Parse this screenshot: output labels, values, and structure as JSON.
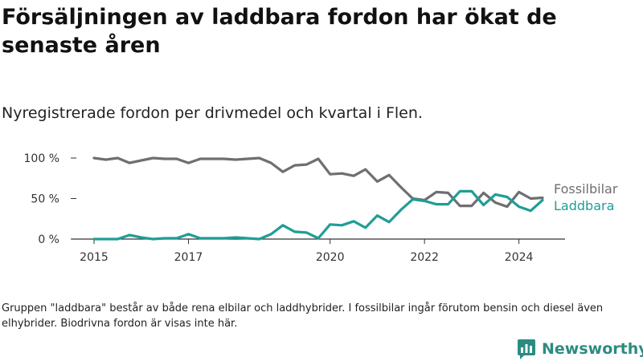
{
  "title": "Försäljningen av laddbara fordon har ökat de senaste åren",
  "subtitle": "Nyregistrerade fordon per drivmedel och kvartal i Flen.",
  "footnote": "Gruppen \"laddbara\" består av både rena elbilar och laddhybrider. I fossilbilar ingår förutom bensin och diesel även elhybrider. Biodrivna fordon är visas inte här.",
  "brand": {
    "name": "Newsworthy",
    "icon": "newsworthy-logo-icon"
  },
  "colors": {
    "fossil": "#6e6e73",
    "laddbara": "#1f9e96",
    "axis": "#333333",
    "grid": "#cccccc"
  },
  "chart_data": {
    "type": "line",
    "title": "",
    "xlabel": "",
    "ylabel": "",
    "ylim": [
      0,
      100
    ],
    "y_ticks": [
      {
        "value": 0,
        "label": "0 %"
      },
      {
        "value": 50,
        "label": "50 %"
      },
      {
        "value": 100,
        "label": "100 %"
      }
    ],
    "x_ticks": [
      "2015",
      "2017",
      "2020",
      "2022",
      "2024"
    ],
    "x_tick_positions": [
      2015.0,
      2017.0,
      2020.0,
      2022.0,
      2024.0
    ],
    "x_range": [
      2015.0,
      2024.5
    ],
    "x": [
      2015.0,
      2015.25,
      2015.5,
      2015.75,
      2016.0,
      2016.25,
      2016.5,
      2016.75,
      2017.0,
      2017.25,
      2017.5,
      2017.75,
      2018.0,
      2018.25,
      2018.5,
      2018.75,
      2019.0,
      2019.25,
      2019.5,
      2019.75,
      2020.0,
      2020.25,
      2020.5,
      2020.75,
      2021.0,
      2021.25,
      2021.5,
      2021.75,
      2022.0,
      2022.25,
      2022.5,
      2022.75,
      2023.0,
      2023.25,
      2023.5,
      2023.75,
      2024.0,
      2024.25,
      2024.5
    ],
    "series": [
      {
        "name": "Fossilbilar",
        "color": "#6e6e73",
        "values": [
          100,
          98,
          100,
          94,
          97,
          100,
          99,
          99,
          94,
          99,
          99,
          99,
          98,
          99,
          100,
          94,
          83,
          91,
          92,
          99,
          80,
          81,
          78,
          86,
          71,
          79,
          64,
          50,
          48,
          58,
          57,
          41,
          41,
          57,
          45,
          40,
          58,
          50,
          51
        ]
      },
      {
        "name": "Laddbara",
        "color": "#1f9e96",
        "values": [
          0,
          0,
          0,
          5,
          2,
          0,
          1,
          1,
          6,
          1,
          1,
          1,
          2,
          1,
          0,
          6,
          17,
          9,
          8,
          1,
          18,
          17,
          22,
          14,
          29,
          21,
          36,
          49,
          47,
          43,
          43,
          59,
          59,
          42,
          55,
          52,
          40,
          35,
          48
        ]
      }
    ],
    "legend": "right"
  }
}
